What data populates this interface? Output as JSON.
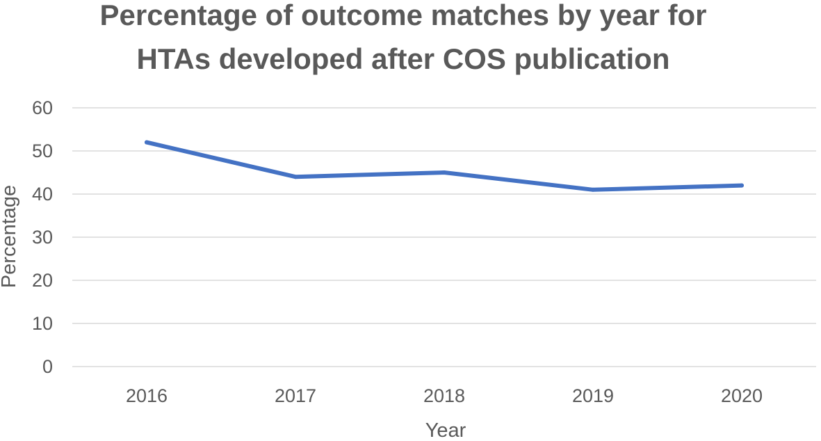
{
  "chart_data": {
    "type": "line",
    "title": [
      "Percentage of outcome matches by year for",
      "HTAs developed after COS publication"
    ],
    "xlabel": "Year",
    "ylabel": "Percentage",
    "categories": [
      "2016",
      "2017",
      "2018",
      "2019",
      "2020"
    ],
    "series": [
      {
        "values": [
          52,
          44,
          45,
          41,
          42
        ],
        "color": "#4472c4"
      }
    ],
    "ylim": [
      0,
      60
    ],
    "yticks": [
      "0",
      "10",
      "20",
      "30",
      "40",
      "50",
      "60"
    ],
    "grid": true,
    "legend": "none"
  }
}
